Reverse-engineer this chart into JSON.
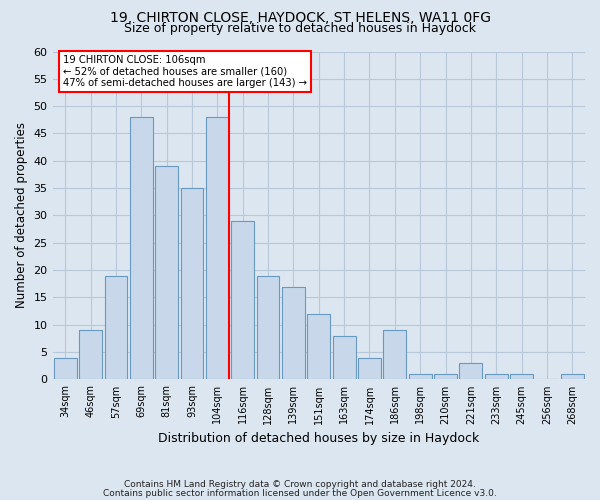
{
  "title1": "19, CHIRTON CLOSE, HAYDOCK, ST HELENS, WA11 0FG",
  "title2": "Size of property relative to detached houses in Haydock",
  "xlabel": "Distribution of detached houses by size in Haydock",
  "ylabel": "Number of detached properties",
  "categories": [
    "34sqm",
    "46sqm",
    "57sqm",
    "69sqm",
    "81sqm",
    "93sqm",
    "104sqm",
    "116sqm",
    "128sqm",
    "139sqm",
    "151sqm",
    "163sqm",
    "174sqm",
    "186sqm",
    "198sqm",
    "210sqm",
    "221sqm",
    "233sqm",
    "245sqm",
    "256sqm",
    "268sqm"
  ],
  "values": [
    4,
    9,
    19,
    48,
    39,
    35,
    48,
    29,
    19,
    17,
    12,
    8,
    4,
    9,
    1,
    1,
    3,
    1,
    1,
    0,
    1
  ],
  "bar_color": "#c8d8ea",
  "bar_edge_color": "#6899c0",
  "red_line_index": 6,
  "ylim": [
    0,
    60
  ],
  "yticks": [
    0,
    5,
    10,
    15,
    20,
    25,
    30,
    35,
    40,
    45,
    50,
    55,
    60
  ],
  "annotation_line1": "19 CHIRTON CLOSE: 106sqm",
  "annotation_line2": "← 52% of detached houses are smaller (160)",
  "annotation_line3": "47% of semi-detached houses are larger (143) →",
  "footnote1": "Contains HM Land Registry data © Crown copyright and database right 2024.",
  "footnote2": "Contains public sector information licensed under the Open Government Licence v3.0.",
  "background_color": "#dce6f0",
  "plot_bg_color": "#dce6f0",
  "grid_color": "#b8c8d8"
}
